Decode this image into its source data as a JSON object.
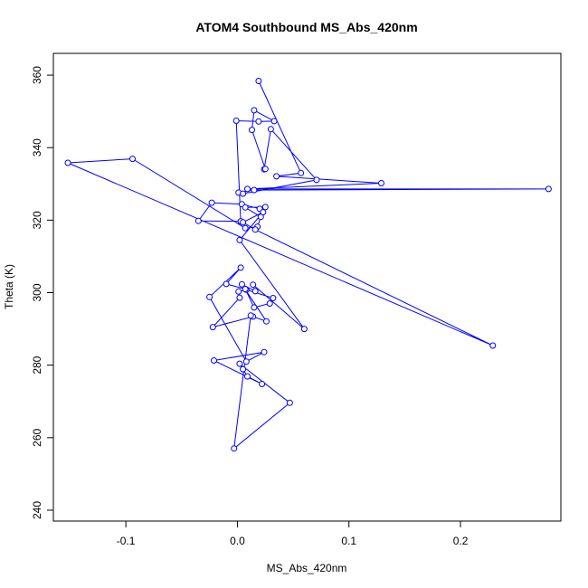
{
  "chart_data": {
    "type": "scatter",
    "title": "ATOM4 Southbound MS_Abs_420nm",
    "xlabel": "MS_Abs_420nm",
    "ylabel": "Theta (K)",
    "xlim": [
      -0.165,
      0.29
    ],
    "ylim": [
      237,
      366
    ],
    "x_ticks": [
      -0.1,
      0.0,
      0.1,
      0.2
    ],
    "x_tick_labels": [
      "-0.1",
      "0.0",
      "0.1",
      "0.2"
    ],
    "y_ticks": [
      240,
      260,
      280,
      300,
      320,
      340,
      360
    ],
    "y_tick_labels": [
      "240",
      "260",
      "280",
      "300",
      "320",
      "340",
      "360"
    ],
    "grid": false,
    "legend": "none",
    "colors": {
      "series": "#0000ff",
      "axis": "#000000"
    },
    "series": [
      {
        "connected": true,
        "points": [
          [
            0.019,
            358.4
          ],
          [
            0.057,
            333.0
          ],
          [
            0.035,
            332.1
          ],
          [
            0.129,
            330.2
          ],
          [
            0.009,
            328.6
          ],
          [
            0.279,
            328.6
          ],
          [
            0.015,
            328.3
          ],
          [
            0.001,
            327.6
          ],
          [
            0.005,
            327.3
          ],
          [
            0.071,
            331.1
          ],
          [
            0.03,
            345.1
          ],
          [
            0.024,
            334.0
          ],
          [
            0.025,
            334.1
          ],
          [
            0.013,
            344.9
          ],
          [
            0.015,
            350.3
          ],
          [
            0.033,
            347.3
          ],
          [
            0.019,
            347.2
          ],
          [
            -0.001,
            347.4
          ],
          [
            0.003,
            319.7
          ],
          [
            -0.035,
            319.8
          ],
          [
            -0.023,
            324.8
          ],
          [
            0.004,
            324.4
          ],
          [
            0.02,
            323.1
          ],
          [
            0.025,
            323.6
          ],
          [
            0.007,
            323.5
          ],
          [
            0.021,
            320.9
          ],
          [
            0.018,
            318.2
          ],
          [
            0.007,
            317.8
          ],
          [
            -0.094,
            336.9
          ],
          [
            -0.152,
            335.8
          ],
          [
            0.229,
            285.4
          ],
          [
            0.016,
            317.4
          ],
          [
            0.005,
            319.4
          ],
          [
            0.023,
            322.2
          ],
          [
            0.002,
            314.5
          ],
          [
            0.06,
            290.0
          ],
          [
            0.014,
            302.2
          ],
          [
            0.016,
            300.4
          ],
          [
            0.004,
            302.3
          ],
          [
            0.026,
            292.1
          ],
          [
            0.014,
            293.4
          ],
          [
            -0.022,
            290.5
          ],
          [
            0.002,
            298.6
          ],
          [
            0.001,
            300.3
          ],
          [
            0.008,
            300.8
          ],
          [
            0.032,
            298.5
          ],
          [
            0.029,
            297.0
          ],
          [
            0.015,
            295.9
          ],
          [
            0.007,
            301.0
          ],
          [
            -0.01,
            302.4
          ],
          [
            0.003,
            306.9
          ],
          [
            -0.025,
            298.8
          ],
          [
            0.008,
            281.0
          ],
          [
            0.024,
            283.6
          ],
          [
            -0.021,
            281.3
          ],
          [
            0.022,
            274.8
          ],
          [
            0.009,
            276.9
          ],
          [
            0.005,
            278.9
          ],
          [
            0.002,
            280.4
          ],
          [
            0.047,
            269.6
          ],
          [
            -0.003,
            257.0
          ],
          [
            0.012,
            293.7
          ]
        ]
      }
    ]
  }
}
